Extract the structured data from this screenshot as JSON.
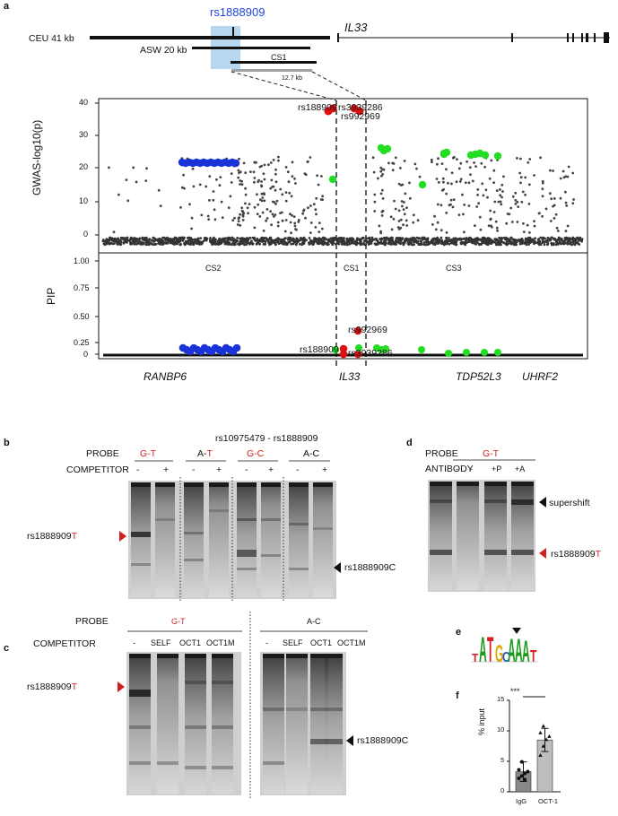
{
  "panel_a": {
    "letter": "a",
    "top_snp": "rs1888909",
    "gene": "IL33",
    "ceu_label": "CEU  41 kb",
    "asw_label": "ASW 20 kb",
    "cs1_label": "CS1",
    "zoom_label": "12.7 kb",
    "gwas_ylabel": "GWAS-log10(p)",
    "gwas_yticks": [
      "40",
      "30",
      "20",
      "10",
      "0"
    ],
    "gwas_snp_labels": [
      "rs188909",
      "rs3939286",
      "rs992969"
    ],
    "pip_ylabel": "PIP",
    "pip_yticks": [
      "1.00",
      "0.75",
      "0.50",
      "0.25",
      "0"
    ],
    "cs_labels": [
      "CS2",
      "CS1",
      "CS3"
    ],
    "pip_snp_labels": [
      "rs992969",
      "rs188909",
      "rs3939286"
    ],
    "genes": [
      "RANBP6",
      "IL33",
      "TDP52L3",
      "UHRF2"
    ],
    "colors": {
      "cs1": "#e01010",
      "cs2": "#1a33d8",
      "cs3": "#22dd22",
      "highlight": "#b9d6ef"
    }
  },
  "panel_b": {
    "letter": "b",
    "title": "rs10975479 - rs1888909",
    "probe_label": "PROBE",
    "competitor_label": "COMPETITOR",
    "probes": [
      "G-T",
      "A-T",
      "G-C",
      "A-C"
    ],
    "lane_marks": [
      "-",
      "+",
      "-",
      "+",
      "-",
      "+",
      "-",
      "+"
    ],
    "left_band_prefix": "rs1888909",
    "left_band_allele": "T",
    "right_band": "rs1888909C"
  },
  "panel_c": {
    "letter": "c",
    "probe_label": "PROBE",
    "competitor_label": "COMPETITOR",
    "probes": [
      "G-T",
      "A-C"
    ],
    "lanes": [
      "-",
      "SELF",
      "OCT1",
      "OCT1M",
      "-",
      "SELF",
      "OCT1",
      "OCT1M"
    ],
    "left_band_prefix": "rs1888909",
    "left_band_allele": "T",
    "right_band": "rs1888909C"
  },
  "panel_d": {
    "letter": "d",
    "probe_label": "PROBE",
    "antibody_label": "ANTIBODY",
    "probe": "G-T",
    "lanes": [
      "-",
      "-",
      "+P",
      "+A"
    ],
    "supershift": "supershift",
    "band_prefix": "rs1888909",
    "band_allele": "T"
  },
  "panel_e": {
    "letter": "e",
    "motif": "TATGCAAAT"
  },
  "panel_f": {
    "letter": "f",
    "ylabel": "% input",
    "yticks": [
      "15",
      "10",
      "5",
      "0"
    ],
    "significance": "***",
    "chart_data": {
      "type": "bar",
      "categories": [
        "IgG",
        "OCT-1"
      ],
      "values": [
        3.3,
        8.5
      ],
      "errors": [
        1.6,
        1.9
      ],
      "ylim": [
        0,
        15
      ],
      "points": [
        [
          2.2,
          2.6,
          3.0,
          3.3,
          3.6,
          4.9,
          2.0
        ],
        [
          6.0,
          7.5,
          8.6,
          9.1,
          9.7,
          10.8
        ]
      ]
    }
  }
}
